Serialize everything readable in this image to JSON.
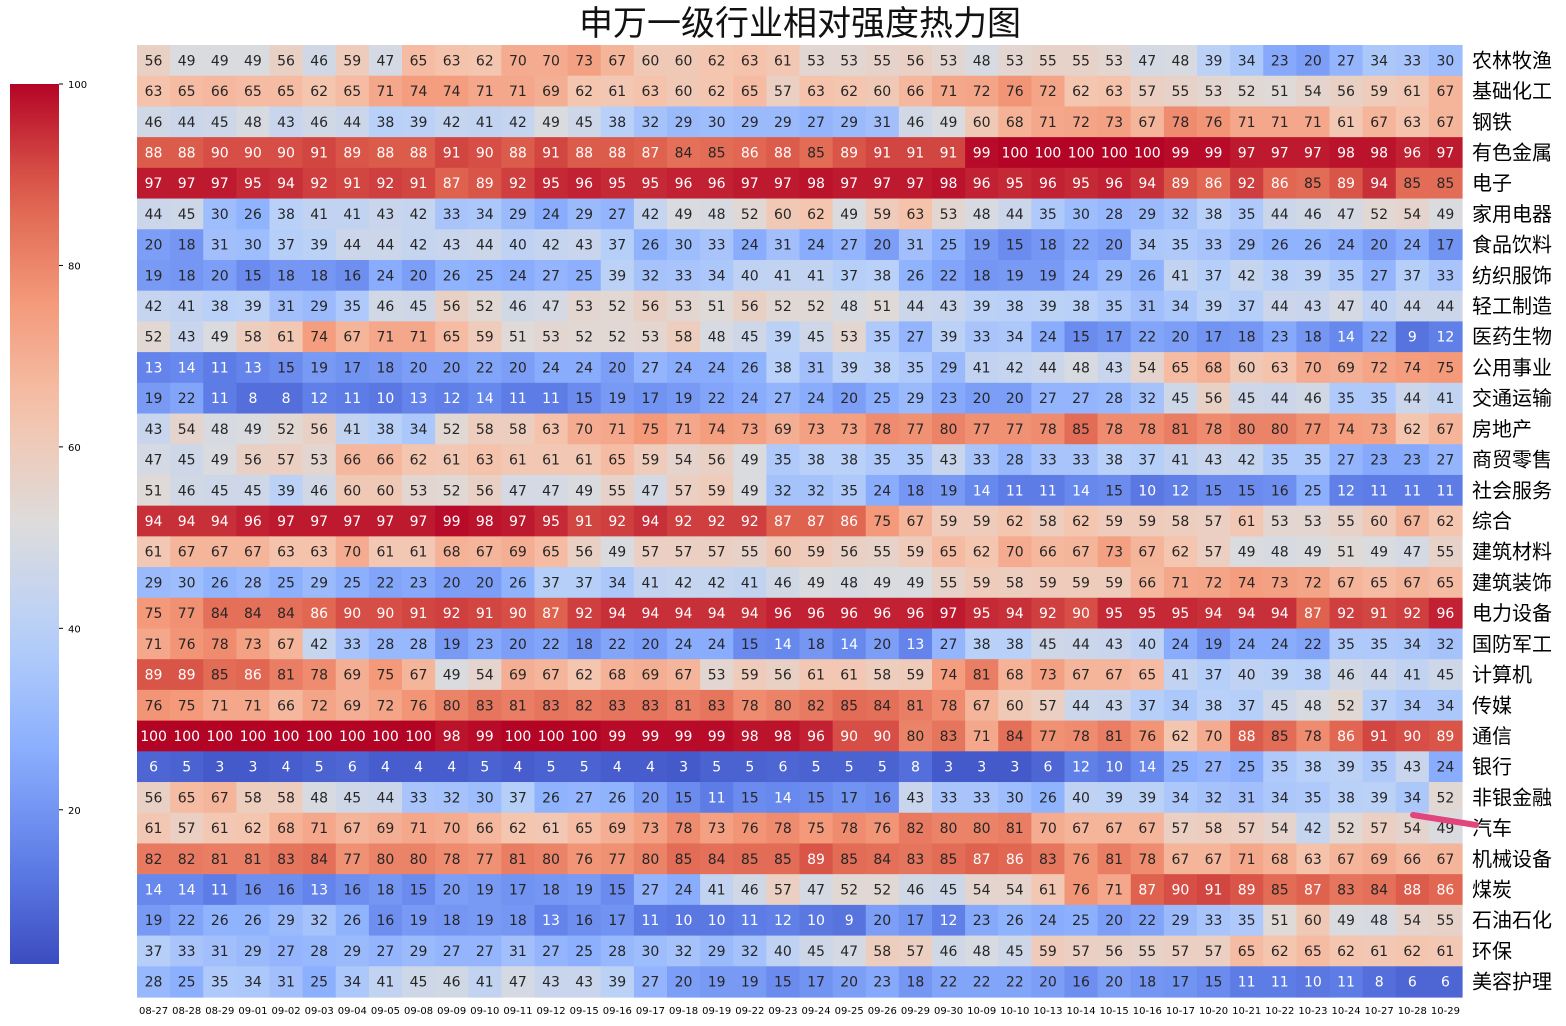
{
  "chart_data": {
    "type": "heatmap",
    "title": "申万一级行业相对强度热力图",
    "colormap": "coolwarm",
    "value_range": [
      0,
      100
    ],
    "colorbar_ticks": [
      20,
      40,
      60,
      80,
      100
    ],
    "columns": [
      "08-27",
      "08-28",
      "08-29",
      "09-01",
      "09-02",
      "09-03",
      "09-04",
      "09-05",
      "09-08",
      "09-09",
      "09-10",
      "09-11",
      "09-12",
      "09-15",
      "09-16",
      "09-17",
      "09-18",
      "09-19",
      "09-22",
      "09-23",
      "09-24",
      "09-25",
      "09-26",
      "09-29",
      "09-30",
      "10-09",
      "10-10",
      "10-13",
      "10-14",
      "10-15",
      "10-16",
      "10-17",
      "10-20",
      "10-21",
      "10-22",
      "10-23",
      "10-24",
      "10-27",
      "10-28",
      "10-29"
    ],
    "rows": [
      "农林牧渔",
      "基础化工",
      "钢铁",
      "有色金属",
      "电子",
      "家用电器",
      "食品饮料",
      "纺织服饰",
      "轻工制造",
      "医药生物",
      "公用事业",
      "交通运输",
      "房地产",
      "商贸零售",
      "社会服务",
      "综合",
      "建筑材料",
      "建筑装饰",
      "电力设备",
      "国防军工",
      "计算机",
      "传媒",
      "通信",
      "银行",
      "非银金融",
      "汽车",
      "机械设备",
      "煤炭",
      "石油石化",
      "环保",
      "美容护理"
    ],
    "values": [
      [
        56,
        49,
        49,
        49,
        56,
        46,
        59,
        47,
        65,
        63,
        62,
        70,
        70,
        73,
        67,
        60,
        60,
        62,
        63,
        61,
        53,
        53,
        55,
        56,
        53,
        48,
        53,
        55,
        55,
        53,
        47,
        48,
        39,
        34,
        23,
        20,
        27,
        34,
        33,
        30
      ],
      [
        63,
        65,
        66,
        65,
        65,
        62,
        65,
        71,
        74,
        74,
        71,
        71,
        69,
        62,
        61,
        63,
        60,
        62,
        65,
        57,
        63,
        62,
        60,
        66,
        71,
        72,
        76,
        72,
        62,
        63,
        57,
        55,
        53,
        52,
        51,
        54,
        56,
        59,
        61,
        67
      ],
      [
        46,
        44,
        45,
        48,
        43,
        46,
        44,
        38,
        39,
        42,
        41,
        42,
        49,
        45,
        38,
        32,
        29,
        30,
        29,
        29,
        27,
        29,
        31,
        46,
        49,
        60,
        68,
        71,
        72,
        73,
        67,
        78,
        76,
        71,
        71,
        71,
        61,
        67,
        63,
        67
      ],
      [
        88,
        88,
        90,
        90,
        90,
        91,
        89,
        88,
        88,
        91,
        90,
        88,
        91,
        88,
        88,
        87,
        84,
        85,
        86,
        88,
        85,
        89,
        91,
        91,
        91,
        99,
        100,
        100,
        100,
        100,
        100,
        99,
        99,
        97,
        97,
        97,
        98,
        98,
        96,
        97
      ],
      [
        97,
        97,
        97,
        95,
        94,
        92,
        91,
        92,
        91,
        87,
        89,
        92,
        95,
        96,
        95,
        95,
        96,
        96,
        97,
        97,
        98,
        97,
        97,
        97,
        98,
        96,
        95,
        96,
        95,
        96,
        94,
        89,
        86,
        92,
        86,
        85,
        89,
        94,
        85,
        85
      ],
      [
        44,
        45,
        30,
        26,
        38,
        41,
        41,
        43,
        42,
        33,
        34,
        29,
        24,
        29,
        27,
        42,
        49,
        48,
        52,
        60,
        62,
        49,
        59,
        63,
        53,
        48,
        44,
        35,
        30,
        28,
        29,
        32,
        38,
        35,
        44,
        46,
        47,
        52,
        54,
        49
      ],
      [
        20,
        18,
        31,
        30,
        37,
        39,
        44,
        44,
        42,
        43,
        44,
        40,
        42,
        43,
        37,
        26,
        30,
        33,
        24,
        31,
        24,
        27,
        20,
        31,
        25,
        19,
        15,
        18,
        22,
        20,
        34,
        35,
        33,
        29,
        26,
        26,
        24,
        20,
        24,
        17
      ],
      [
        19,
        18,
        20,
        15,
        18,
        18,
        16,
        24,
        20,
        26,
        25,
        24,
        27,
        25,
        39,
        32,
        33,
        34,
        40,
        41,
        41,
        37,
        38,
        26,
        22,
        18,
        19,
        19,
        24,
        29,
        26,
        41,
        37,
        42,
        38,
        39,
        35,
        27,
        37,
        33
      ],
      [
        42,
        41,
        38,
        39,
        31,
        29,
        35,
        46,
        45,
        56,
        52,
        46,
        47,
        53,
        52,
        56,
        53,
        51,
        56,
        52,
        52,
        48,
        51,
        44,
        43,
        39,
        38,
        39,
        38,
        35,
        31,
        34,
        39,
        37,
        44,
        43,
        47,
        40,
        44,
        44
      ],
      [
        52,
        43,
        49,
        58,
        61,
        74,
        67,
        71,
        71,
        65,
        59,
        51,
        53,
        52,
        52,
        53,
        58,
        48,
        45,
        39,
        45,
        53,
        35,
        27,
        39,
        33,
        34,
        24,
        15,
        17,
        22,
        20,
        17,
        18,
        23,
        18,
        14,
        22,
        9,
        12
      ],
      [
        13,
        14,
        11,
        13,
        15,
        19,
        17,
        18,
        20,
        20,
        22,
        20,
        24,
        24,
        20,
        27,
        24,
        24,
        26,
        38,
        31,
        39,
        38,
        35,
        29,
        41,
        42,
        44,
        48,
        43,
        54,
        65,
        68,
        60,
        63,
        70,
        69,
        72,
        74,
        75
      ],
      [
        19,
        22,
        11,
        8,
        8,
        12,
        11,
        10,
        13,
        12,
        14,
        11,
        11,
        15,
        19,
        17,
        19,
        22,
        24,
        27,
        24,
        20,
        25,
        29,
        23,
        20,
        20,
        27,
        27,
        28,
        32,
        45,
        56,
        45,
        44,
        46,
        35,
        35,
        44,
        41
      ],
      [
        43,
        54,
        48,
        49,
        52,
        56,
        41,
        38,
        34,
        52,
        58,
        58,
        63,
        70,
        71,
        75,
        71,
        74,
        73,
        69,
        73,
        73,
        78,
        77,
        80,
        77,
        77,
        78,
        85,
        78,
        78,
        81,
        78,
        80,
        80,
        77,
        74,
        73,
        62,
        67
      ],
      [
        47,
        45,
        49,
        56,
        57,
        53,
        66,
        66,
        62,
        61,
        63,
        61,
        61,
        61,
        65,
        59,
        54,
        56,
        49,
        35,
        38,
        38,
        35,
        35,
        43,
        33,
        28,
        33,
        33,
        38,
        37,
        41,
        43,
        42,
        35,
        35,
        27,
        23,
        23,
        27
      ],
      [
        51,
        46,
        45,
        45,
        39,
        46,
        60,
        60,
        53,
        52,
        56,
        47,
        47,
        49,
        55,
        47,
        57,
        59,
        49,
        32,
        32,
        35,
        24,
        18,
        19,
        14,
        11,
        11,
        14,
        15,
        10,
        12,
        15,
        15,
        16,
        25,
        12,
        11,
        11,
        11
      ],
      [
        94,
        94,
        94,
        96,
        97,
        97,
        97,
        97,
        97,
        99,
        98,
        97,
        95,
        91,
        92,
        94,
        92,
        92,
        92,
        87,
        87,
        86,
        75,
        67,
        59,
        59,
        62,
        58,
        62,
        59,
        59,
        58,
        57,
        61,
        53,
        53,
        55,
        60,
        67,
        62
      ],
      [
        61,
        67,
        67,
        67,
        63,
        63,
        70,
        61,
        61,
        68,
        67,
        69,
        65,
        56,
        49,
        57,
        57,
        57,
        55,
        60,
        59,
        56,
        55,
        59,
        65,
        62,
        70,
        66,
        67,
        73,
        67,
        62,
        57,
        49,
        48,
        49,
        51,
        49,
        47,
        55
      ],
      [
        29,
        30,
        26,
        28,
        25,
        29,
        25,
        22,
        23,
        20,
        20,
        26,
        37,
        37,
        34,
        41,
        42,
        42,
        41,
        46,
        49,
        48,
        49,
        49,
        55,
        59,
        58,
        59,
        59,
        59,
        66,
        71,
        72,
        74,
        73,
        72,
        67,
        65,
        67,
        65
      ],
      [
        75,
        77,
        84,
        84,
        84,
        86,
        90,
        90,
        91,
        92,
        91,
        90,
        87,
        92,
        94,
        94,
        94,
        94,
        94,
        96,
        96,
        96,
        96,
        96,
        97,
        95,
        94,
        92,
        90,
        95,
        95,
        95,
        94,
        94,
        94,
        87,
        92,
        91,
        92,
        96
      ],
      [
        71,
        76,
        78,
        73,
        67,
        42,
        33,
        28,
        28,
        19,
        23,
        20,
        22,
        18,
        22,
        20,
        24,
        24,
        15,
        14,
        18,
        14,
        20,
        13,
        27,
        38,
        38,
        45,
        44,
        43,
        40,
        24,
        19,
        24,
        24,
        22,
        35,
        35,
        34,
        32
      ],
      [
        89,
        89,
        85,
        86,
        81,
        78,
        69,
        75,
        67,
        49,
        54,
        69,
        67,
        62,
        68,
        69,
        67,
        53,
        59,
        56,
        61,
        61,
        58,
        59,
        74,
        81,
        68,
        73,
        67,
        67,
        65,
        41,
        37,
        40,
        39,
        38,
        46,
        44,
        41,
        45
      ],
      [
        76,
        75,
        71,
        71,
        66,
        72,
        69,
        72,
        76,
        80,
        83,
        81,
        83,
        82,
        83,
        83,
        81,
        83,
        78,
        80,
        82,
        85,
        84,
        81,
        78,
        67,
        60,
        57,
        44,
        43,
        37,
        34,
        38,
        37,
        45,
        48,
        52,
        37,
        34,
        34
      ],
      [
        100,
        100,
        100,
        100,
        100,
        100,
        100,
        100,
        100,
        98,
        99,
        100,
        100,
        100,
        99,
        99,
        99,
        99,
        98,
        98,
        96,
        90,
        90,
        80,
        83,
        71,
        84,
        77,
        78,
        81,
        76,
        62,
        70,
        88,
        85,
        78,
        86,
        91,
        90,
        89
      ],
      [
        6,
        5,
        3,
        3,
        4,
        5,
        6,
        4,
        4,
        4,
        5,
        4,
        5,
        5,
        4,
        4,
        3,
        5,
        5,
        6,
        5,
        5,
        5,
        8,
        3,
        3,
        3,
        6,
        12,
        10,
        14,
        25,
        27,
        25,
        35,
        38,
        39,
        35,
        43,
        24
      ],
      [
        56,
        65,
        67,
        58,
        58,
        48,
        45,
        44,
        33,
        32,
        30,
        37,
        26,
        27,
        26,
        20,
        15,
        11,
        15,
        14,
        15,
        17,
        16,
        43,
        33,
        33,
        30,
        26,
        40,
        39,
        39,
        34,
        32,
        31,
        34,
        35,
        38,
        39,
        34,
        52
      ],
      [
        61,
        57,
        61,
        62,
        68,
        71,
        67,
        69,
        71,
        70,
        66,
        62,
        61,
        65,
        69,
        73,
        78,
        73,
        76,
        78,
        75,
        78,
        76,
        82,
        80,
        80,
        81,
        70,
        67,
        67,
        67,
        57,
        58,
        57,
        54,
        42,
        52,
        57,
        54,
        49
      ],
      [
        82,
        82,
        81,
        81,
        83,
        84,
        77,
        80,
        80,
        78,
        77,
        81,
        80,
        76,
        77,
        80,
        85,
        84,
        85,
        85,
        89,
        85,
        84,
        83,
        85,
        87,
        86,
        83,
        76,
        81,
        78,
        67,
        67,
        71,
        68,
        63,
        67,
        69,
        66,
        67
      ],
      [
        14,
        14,
        11,
        16,
        16,
        13,
        16,
        18,
        15,
        20,
        19,
        17,
        18,
        19,
        15,
        27,
        24,
        41,
        46,
        57,
        47,
        52,
        52,
        46,
        45,
        54,
        54,
        61,
        76,
        71,
        87,
        90,
        91,
        89,
        85,
        87,
        83,
        84,
        88,
        86
      ],
      [
        19,
        22,
        26,
        26,
        29,
        32,
        26,
        16,
        19,
        18,
        19,
        18,
        13,
        16,
        17,
        11,
        10,
        10,
        11,
        12,
        10,
        9,
        20,
        17,
        12,
        23,
        26,
        24,
        25,
        20,
        22,
        29,
        33,
        35,
        51,
        60,
        49,
        48,
        54,
        55
      ],
      [
        37,
        33,
        31,
        29,
        27,
        28,
        29,
        27,
        29,
        27,
        27,
        31,
        27,
        25,
        28,
        30,
        32,
        29,
        32,
        40,
        45,
        47,
        58,
        57,
        46,
        48,
        45,
        59,
        57,
        56,
        55,
        57,
        57,
        65,
        62,
        65,
        62,
        61,
        62,
        61
      ],
      [
        28,
        25,
        35,
        34,
        31,
        25,
        34,
        41,
        45,
        46,
        41,
        47,
        43,
        43,
        39,
        27,
        20,
        19,
        19,
        15,
        17,
        20,
        23,
        18,
        22,
        22,
        22,
        20,
        16,
        20,
        18,
        17,
        15,
        11,
        11,
        10,
        11,
        8,
        6,
        6
      ]
    ]
  }
}
